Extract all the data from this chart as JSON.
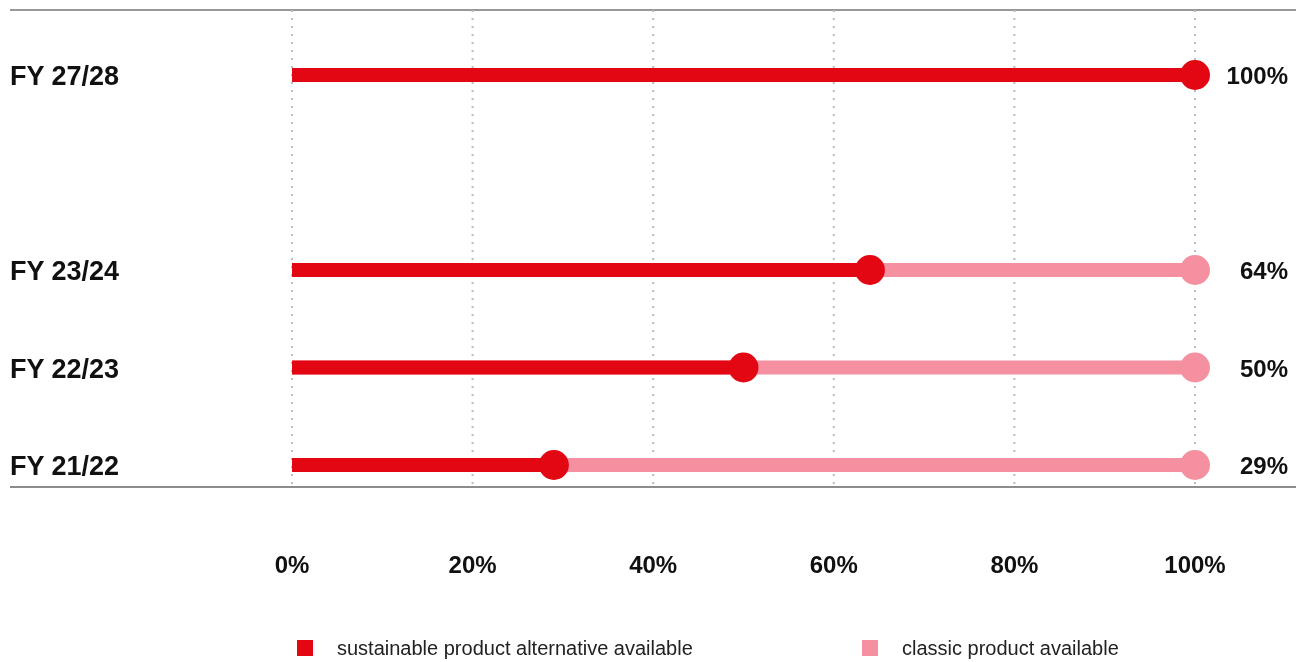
{
  "chart_data": {
    "type": "lollipop",
    "orientation": "horizontal",
    "categories": [
      "FY 27/28",
      null,
      "FY 23/24",
      "FY 22/23",
      "FY 21/22"
    ],
    "series": [
      {
        "name": "sustainable product alternative available",
        "color": "#e30613",
        "values": [
          100,
          null,
          64,
          50,
          29
        ],
        "value_labels": [
          "100%",
          null,
          "64%",
          "50%",
          "29%"
        ]
      },
      {
        "name": "classic product available",
        "color": "#f4909f",
        "values": [
          null,
          null,
          100,
          100,
          100
        ]
      }
    ],
    "xlim": [
      0,
      100
    ],
    "xticks": [
      {
        "value": 0,
        "label": "0%"
      },
      {
        "value": 20,
        "label": "20%"
      },
      {
        "value": 40,
        "label": "40%"
      },
      {
        "value": 60,
        "label": "60%"
      },
      {
        "value": 80,
        "label": "80%"
      },
      {
        "value": 100,
        "label": "100%"
      }
    ],
    "grid": "x",
    "legend": "bottom",
    "marker": "circle"
  }
}
